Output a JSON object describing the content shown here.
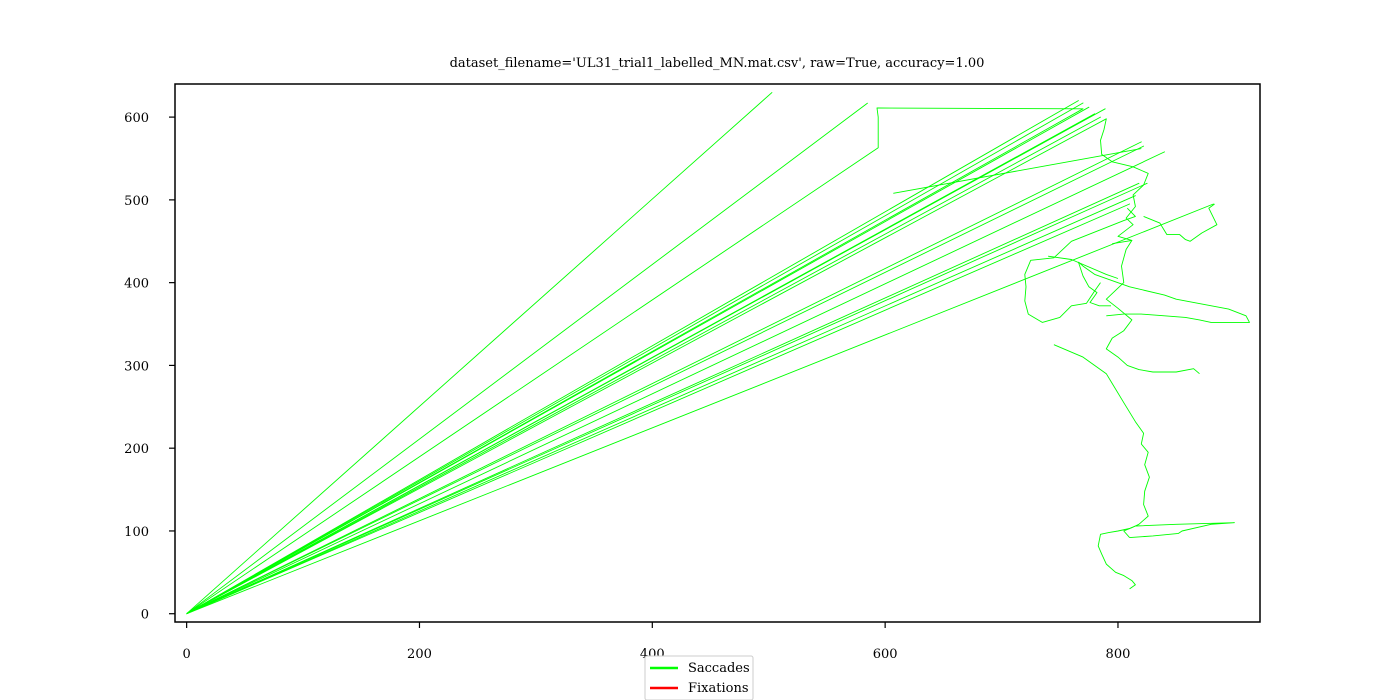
{
  "chart_data": {
    "type": "line",
    "title": "dataset_filename='UL31_trial1_labelled_MN.mat.csv', raw=True, accuracy=1.00",
    "xlabel": "",
    "ylabel": "",
    "xlim": [
      -10,
      922
    ],
    "ylim": [
      -10,
      640
    ],
    "xticks": [
      0,
      200,
      400,
      600,
      800
    ],
    "yticks": [
      0,
      100,
      200,
      300,
      400,
      500,
      600
    ],
    "grid": false,
    "legend_position": "bottom-center",
    "colors": {
      "saccades": "#00ff00",
      "fixations": "#ff0000",
      "axes": "#000000"
    },
    "series": [
      {
        "name": "Saccades",
        "color": "#00ff00",
        "segments": [
          [
            [
              0,
              0
            ],
            [
              503,
              630
            ]
          ],
          [
            [
              0,
              0
            ],
            [
              585,
              617
            ]
          ],
          [
            [
              0,
              0
            ],
            [
              594,
              563
            ],
            [
              594,
              600
            ],
            [
              593,
              611
            ],
            [
              770,
              610
            ],
            [
              0,
              0
            ]
          ],
          [
            [
              0,
              0
            ],
            [
              770,
              617
            ],
            [
              0,
              0
            ]
          ],
          [
            [
              0,
              0
            ],
            [
              766,
              620
            ],
            [
              0,
              0
            ]
          ],
          [
            [
              0,
              0
            ],
            [
              775,
              612
            ],
            [
              0,
              0
            ]
          ],
          [
            [
              0,
              0
            ],
            [
              789,
              610
            ],
            [
              0,
              0
            ]
          ],
          [
            [
              0,
              0
            ],
            [
              785,
              600
            ],
            [
              0,
              0
            ]
          ],
          [
            [
              0,
              0
            ],
            [
              780,
              604
            ],
            [
              0,
              0
            ]
          ],
          [
            [
              0,
              0
            ],
            [
              790,
              598
            ],
            [
              0,
              0
            ]
          ],
          [
            [
              0,
              0
            ],
            [
              820,
              570
            ],
            [
              0,
              0
            ]
          ],
          [
            [
              0,
              0
            ],
            [
              822,
              565
            ],
            [
              0,
              0
            ]
          ],
          [
            [
              0,
              0
            ],
            [
              840,
              558
            ],
            [
              0,
              0
            ]
          ],
          [
            [
              0,
              0
            ],
            [
              818,
              520
            ],
            [
              0,
              0
            ]
          ],
          [
            [
              0,
              0
            ],
            [
              815,
              505
            ],
            [
              0,
              0
            ]
          ],
          [
            [
              0,
              0
            ],
            [
              810,
              495
            ],
            [
              0,
              0
            ]
          ],
          [
            [
              0,
              0
            ],
            [
              825,
              520
            ],
            [
              0,
              0
            ]
          ],
          [
            [
              0,
              0
            ],
            [
              882,
              495
            ],
            [
              0,
              0
            ]
          ],
          [
            [
              607,
              508
            ],
            [
              820,
              562
            ]
          ],
          [
            [
              790,
              598
            ],
            [
              788,
              585
            ],
            [
              785,
              572
            ],
            [
              786,
              555
            ],
            [
              795,
              546
            ],
            [
              813,
              540
            ],
            [
              826,
              532
            ],
            [
              822,
              518
            ],
            [
              813,
              506
            ],
            [
              815,
              492
            ],
            [
              807,
              478
            ],
            [
              813,
              470
            ],
            [
              800,
              456
            ],
            [
              812,
              451
            ],
            [
              795,
              447
            ]
          ],
          [
            [
              822,
              480
            ],
            [
              836,
              472
            ],
            [
              842,
              458
            ],
            [
              853,
              458
            ],
            [
              858,
              452
            ],
            [
              862,
              450
            ],
            [
              872,
              460
            ],
            [
              885,
              470
            ],
            [
              878,
              490
            ],
            [
              883,
              495
            ]
          ],
          [
            [
              812,
              451
            ],
            [
              807,
              440
            ],
            [
              803,
              420
            ],
            [
              805,
              400
            ],
            [
              790,
              380
            ],
            [
              800,
              369
            ],
            [
              812,
              355
            ],
            [
              805,
              342
            ],
            [
              795,
              333
            ],
            [
              790,
              320
            ],
            [
              800,
              310
            ],
            [
              808,
              300
            ],
            [
              818,
              295
            ],
            [
              830,
              292
            ],
            [
              850,
              292
            ],
            [
              865,
              296
            ],
            [
              870,
              290
            ]
          ],
          [
            [
              790,
              360
            ],
            [
              805,
              362
            ],
            [
              820,
              362
            ],
            [
              840,
              360
            ],
            [
              858,
              358
            ],
            [
              870,
              355
            ],
            [
              880,
              352
            ],
            [
              913,
              352
            ],
            [
              910,
              360
            ],
            [
              895,
              368
            ],
            [
              850,
              380
            ],
            [
              840,
              385
            ],
            [
              810,
              395
            ],
            [
              780,
              410
            ],
            [
              770,
              420
            ],
            [
              766,
              425
            ]
          ],
          [
            [
              766,
              425
            ],
            [
              770,
              408
            ],
            [
              775,
              395
            ],
            [
              782,
              388
            ],
            [
              776,
              376
            ],
            [
              784,
              372
            ],
            [
              794,
              372
            ]
          ],
          [
            [
              785,
              400
            ],
            [
              780,
              390
            ],
            [
              773,
              375
            ],
            [
              760,
              372
            ],
            [
              750,
              358
            ],
            [
              735,
              352
            ],
            [
              723,
              362
            ],
            [
              720,
              378
            ],
            [
              721,
              395
            ],
            [
              720,
              410
            ],
            [
              725,
              427
            ],
            [
              745,
              430
            ],
            [
              760,
              450
            ],
            [
              805,
              475
            ],
            [
              815,
              480
            ],
            [
              808,
              490
            ]
          ],
          [
            [
              740,
              432
            ],
            [
              760,
              428
            ],
            [
              790,
              410
            ],
            [
              800,
              405
            ]
          ],
          [
            [
              745,
              325
            ],
            [
              770,
              310
            ],
            [
              790,
              290
            ],
            [
              805,
              255
            ],
            [
              815,
              232
            ],
            [
              822,
              218
            ],
            [
              820,
              205
            ],
            [
              826,
              195
            ],
            [
              823,
              180
            ],
            [
              827,
              165
            ],
            [
              823,
              148
            ],
            [
              822,
              132
            ],
            [
              826,
              118
            ],
            [
              818,
              108
            ],
            [
              812,
              104
            ],
            [
              805,
              100
            ],
            [
              810,
              92
            ]
          ],
          [
            [
              810,
              92
            ],
            [
              830,
              94
            ],
            [
              852,
              97
            ],
            [
              855,
              100
            ],
            [
              880,
              108
            ],
            [
              900,
              110
            ],
            [
              850,
              108
            ],
            [
              815,
              106
            ]
          ],
          [
            [
              815,
              106
            ],
            [
              810,
              103
            ],
            [
              800,
              100
            ],
            [
              792,
              98
            ],
            [
              785,
              96
            ],
            [
              783,
              82
            ],
            [
              786,
              72
            ],
            [
              790,
              60
            ],
            [
              798,
              50
            ],
            [
              805,
              46
            ],
            [
              812,
              40
            ],
            [
              815,
              35
            ],
            [
              810,
              30
            ]
          ]
        ]
      },
      {
        "name": "Fixations",
        "color": "#ff0000",
        "segments": []
      }
    ]
  }
}
